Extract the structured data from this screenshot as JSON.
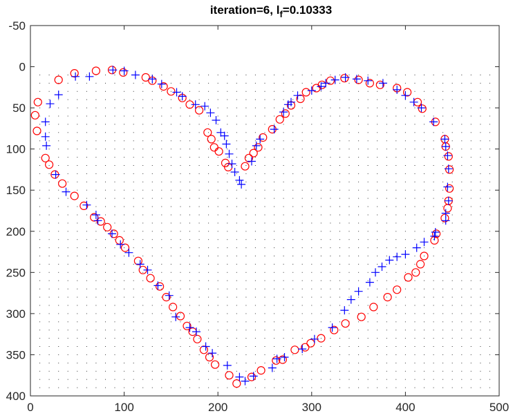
{
  "chart_data": {
    "type": "scatter",
    "title": {
      "prefix": "iteration=6,  l",
      "subscript": "f",
      "suffix": "=0.10333"
    },
    "xlim": [
      0,
      500
    ],
    "ylim": [
      -50,
      400
    ],
    "y_reversed": true,
    "x_ticks": [
      "0",
      "100",
      "200",
      "300",
      "400",
      "500"
    ],
    "y_ticks": [
      "-50",
      "0",
      "50",
      "100",
      "150",
      "200",
      "250",
      "300",
      "350",
      "400"
    ],
    "x_tick_values": [
      0,
      100,
      200,
      300,
      400,
      500
    ],
    "y_tick_values": [
      -50,
      0,
      50,
      100,
      150,
      200,
      250,
      300,
      350,
      400
    ],
    "grid_field": {
      "x_start": 10,
      "x_step": 10,
      "x_end": 490,
      "y_start": 10,
      "y_step": 10,
      "y_end": 390,
      "color": "#333333"
    },
    "series": [
      {
        "marker": "circle",
        "color": "#ff0000",
        "points": [
          [
            5,
            59
          ],
          [
            7,
            78
          ],
          [
            8,
            43
          ],
          [
            16,
            111
          ],
          [
            20,
            119
          ],
          [
            26,
            131
          ],
          [
            30,
            16
          ],
          [
            34,
            142
          ],
          [
            47,
            8
          ],
          [
            47,
            157
          ],
          [
            57,
            169
          ],
          [
            70,
            5
          ],
          [
            68,
            183
          ],
          [
            75,
            188
          ],
          [
            82,
            195
          ],
          [
            87,
            4
          ],
          [
            89,
            203
          ],
          [
            95,
            211
          ],
          [
            101,
            220
          ],
          [
            99,
            7
          ],
          [
            115,
            236
          ],
          [
            123,
            13
          ],
          [
            120,
            247
          ],
          [
            128,
            257
          ],
          [
            130,
            17
          ],
          [
            138,
            267
          ],
          [
            142,
            24
          ],
          [
            145,
            280
          ],
          [
            150,
            30
          ],
          [
            152,
            292
          ],
          [
            162,
            38
          ],
          [
            160,
            303
          ],
          [
            170,
            46
          ],
          [
            167,
            315
          ],
          [
            173,
            322
          ],
          [
            180,
            53
          ],
          [
            178,
            331
          ],
          [
            185,
            344
          ],
          [
            189,
            80
          ],
          [
            191,
            353
          ],
          [
            193,
            88
          ],
          [
            196,
            98
          ],
          [
            197,
            362
          ],
          [
            201,
            103
          ],
          [
            208,
            117
          ],
          [
            211,
            122
          ],
          [
            212,
            375
          ],
          [
            220,
            385
          ],
          [
            229,
            121
          ],
          [
            233,
            111
          ],
          [
            236,
            377
          ],
          [
            238,
            105
          ],
          [
            243,
            98
          ],
          [
            246,
            369
          ],
          [
            248,
            86
          ],
          [
            258,
            76
          ],
          [
            262,
            357
          ],
          [
            266,
            64
          ],
          [
            269,
            356
          ],
          [
            272,
            57
          ],
          [
            278,
            47
          ],
          [
            282,
            344
          ],
          [
            288,
            39
          ],
          [
            293,
            341
          ],
          [
            294,
            31
          ],
          [
            299,
            336
          ],
          [
            305,
            26
          ],
          [
            310,
            330
          ],
          [
            311,
            22
          ],
          [
            320,
            17
          ],
          [
            324,
            320
          ],
          [
            335,
            14
          ],
          [
            336,
            312
          ],
          [
            350,
            16
          ],
          [
            353,
            304
          ],
          [
            362,
            20
          ],
          [
            366,
            292
          ],
          [
            373,
            22
          ],
          [
            381,
            280
          ],
          [
            391,
            26
          ],
          [
            391,
            271
          ],
          [
            402,
            31
          ],
          [
            403,
            256
          ],
          [
            411,
            250
          ],
          [
            413,
            43
          ],
          [
            416,
            240
          ],
          [
            418,
            51
          ],
          [
            420,
            230
          ],
          [
            431,
            211
          ],
          [
            433,
            203
          ],
          [
            442,
            184
          ],
          [
            445,
            172
          ],
          [
            446,
            163
          ],
          [
            447,
            148
          ],
          [
            447,
            125
          ],
          [
            446,
            109
          ],
          [
            443,
            97
          ],
          [
            442,
            88
          ],
          [
            432,
            67
          ]
        ]
      },
      {
        "marker": "plus",
        "color": "#0000ff",
        "points": [
          [
            16,
            67
          ],
          [
            16,
            85
          ],
          [
            17,
            96
          ],
          [
            21,
            45
          ],
          [
            27,
            131
          ],
          [
            30,
            34
          ],
          [
            38,
            152
          ],
          [
            48,
            12
          ],
          [
            60,
            168
          ],
          [
            63,
            12
          ],
          [
            70,
            180
          ],
          [
            72,
            187
          ],
          [
            88,
            4
          ],
          [
            87,
            203
          ],
          [
            96,
            216
          ],
          [
            100,
            5
          ],
          [
            105,
            226
          ],
          [
            112,
            10
          ],
          [
            117,
            240
          ],
          [
            125,
            247
          ],
          [
            130,
            15
          ],
          [
            136,
            266
          ],
          [
            140,
            21
          ],
          [
            148,
            278
          ],
          [
            156,
            31
          ],
          [
            155,
            304
          ],
          [
            162,
            36
          ],
          [
            170,
            317
          ],
          [
            177,
            322
          ],
          [
            176,
            46
          ],
          [
            186,
            48
          ],
          [
            187,
            340
          ],
          [
            192,
            56
          ],
          [
            194,
            348
          ],
          [
            198,
            65
          ],
          [
            203,
            80
          ],
          [
            207,
            84
          ],
          [
            209,
            94
          ],
          [
            210,
            363
          ],
          [
            212,
            106
          ],
          [
            215,
            118
          ],
          [
            218,
            128
          ],
          [
            223,
            138
          ],
          [
            223,
            377
          ],
          [
            225,
            143
          ],
          [
            229,
            382
          ],
          [
            236,
            115
          ],
          [
            238,
            376
          ],
          [
            241,
            96
          ],
          [
            245,
            88
          ],
          [
            258,
            366
          ],
          [
            260,
            76
          ],
          [
            263,
            355
          ],
          [
            270,
            55
          ],
          [
            271,
            353
          ],
          [
            275,
            46
          ],
          [
            278,
            43
          ],
          [
            285,
            35
          ],
          [
            290,
            343
          ],
          [
            300,
            29
          ],
          [
            303,
            331
          ],
          [
            310,
            24
          ],
          [
            315,
            20
          ],
          [
            322,
            317
          ],
          [
            325,
            16
          ],
          [
            335,
            296
          ],
          [
            336,
            13
          ],
          [
            342,
            283
          ],
          [
            348,
            15
          ],
          [
            350,
            273
          ],
          [
            360,
            17
          ],
          [
            362,
            262
          ],
          [
            368,
            250
          ],
          [
            376,
            20
          ],
          [
            375,
            243
          ],
          [
            383,
            235
          ],
          [
            391,
            28
          ],
          [
            391,
            231
          ],
          [
            400,
            35
          ],
          [
            400,
            228
          ],
          [
            409,
            43
          ],
          [
            412,
            220
          ],
          [
            417,
            50
          ],
          [
            420,
            213
          ],
          [
            430,
            67
          ],
          [
            431,
            206
          ],
          [
            432,
            201
          ],
          [
            443,
            187
          ],
          [
            443,
            178
          ],
          [
            446,
            163
          ],
          [
            445,
            146
          ],
          [
            446,
            124
          ],
          [
            445,
            108
          ],
          [
            443,
            97
          ],
          [
            442,
            88
          ]
        ]
      }
    ]
  }
}
